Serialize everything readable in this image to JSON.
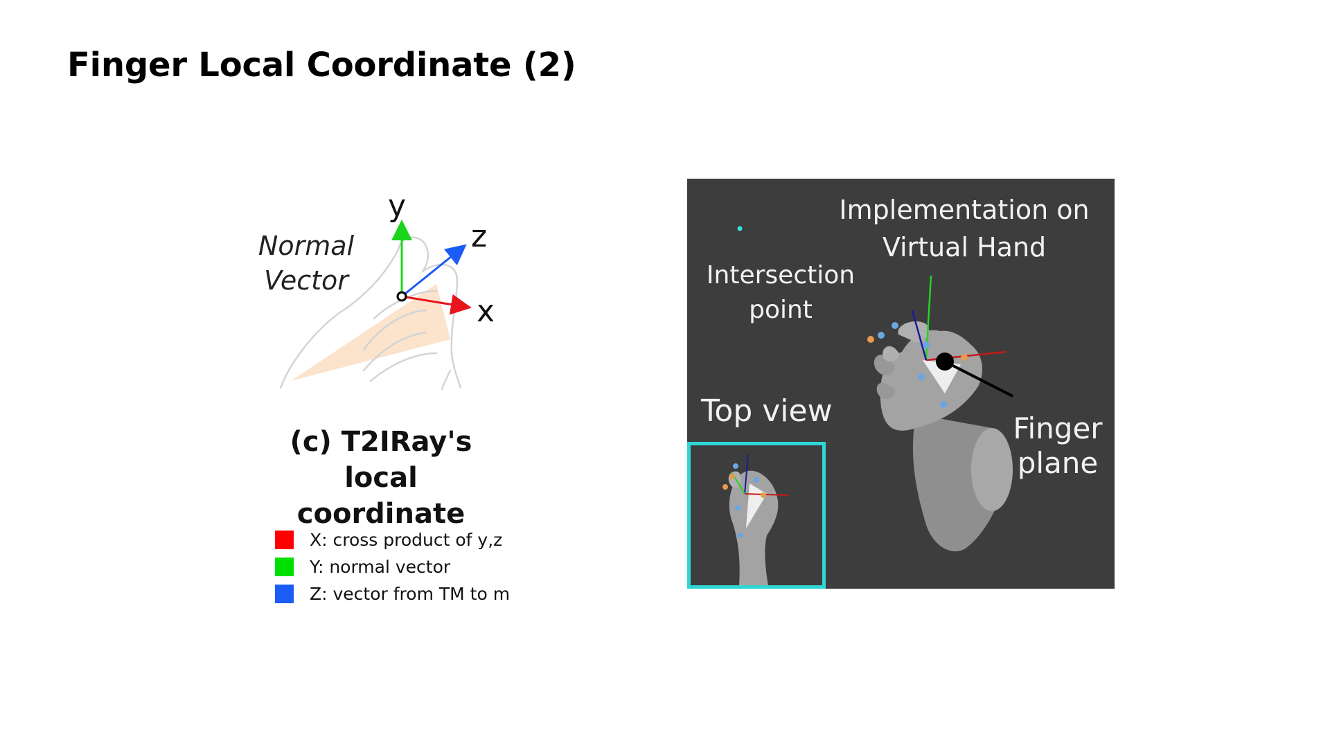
{
  "slide": {
    "title": "Finger Local Coordinate (2)"
  },
  "left_diagram": {
    "normal_vector_label_line1": "Normal",
    "normal_vector_label_line2": "Vector",
    "axes": {
      "x": "x",
      "y": "y",
      "z": "z"
    },
    "axis_colors": {
      "x": "#e8141b",
      "y": "#1bd41b",
      "z": "#1a5cf5"
    },
    "plane_color": "#fbe3cc",
    "caption_line1": "(c) T2IRay's local",
    "caption_line2": "coordinate"
  },
  "legend": {
    "items": [
      {
        "color": "#ff0000",
        "text": "X: cross product of y,z"
      },
      {
        "color": "#00e000",
        "text": "Y: normal vector"
      },
      {
        "color": "#1a5cf5",
        "text": "Z: vector from TM to m"
      }
    ]
  },
  "render_panel": {
    "title_line1": "Implementation on",
    "title_line2": "Virtual Hand",
    "intersection_line1": "Intersection",
    "intersection_line2": "point",
    "top_view_label": "Top view",
    "finger_plane_line1": "Finger",
    "finger_plane_line2": "plane",
    "background_color": "#3d3d3d",
    "inset_border_color": "#2fd6d6"
  }
}
